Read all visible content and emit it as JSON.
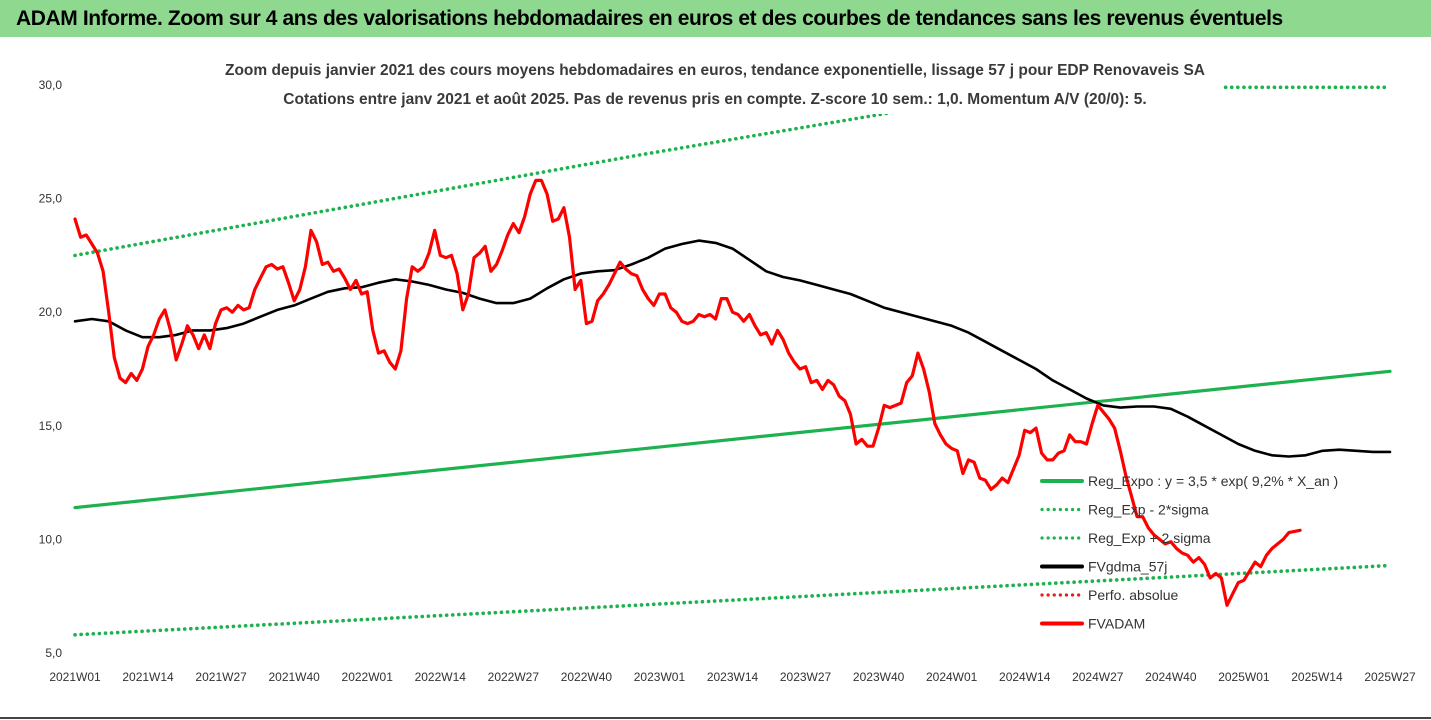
{
  "banner": {
    "text": "ADAM Informe. Zoom sur 4 ans des valorisations hebdomadaires en euros et des courbes de tendances sans les revenus éventuels"
  },
  "chart_data": {
    "type": "line",
    "title_lines": [
      "Zoom depuis janvier 2021 des cours moyens hebdomadaires en euros, tendance exponentielle, lissage 57 j pour EDP Renovaveis SA",
      "Cotations entre janv 2021 et août 2025.  Pas de revenus pris en compte. Z-score 10 sem.: 1,0. Momentum A/V (20/0): 5."
    ],
    "x_ticks": [
      "2021W01",
      "2021W14",
      "2021W27",
      "2021W40",
      "2022W01",
      "2022W14",
      "2022W27",
      "2022W40",
      "2023W01",
      "2023W14",
      "2023W27",
      "2023W40",
      "2024W01",
      "2024W14",
      "2024W27",
      "2024W40",
      "2025W01",
      "2025W14",
      "2025W27"
    ],
    "y_ticks": [
      "30,0",
      "25,0",
      "20,0",
      "15,0",
      "10,0",
      "5,0"
    ],
    "ylim": [
      5,
      30
    ],
    "x_range": [
      0,
      234
    ],
    "grid": false,
    "legend_position": "right",
    "series": [
      {
        "name": "Reg_Expo : y = 3,5 * exp( 9,2% *  X_an )",
        "style": "solid",
        "color": "#1eb14f",
        "points": [
          [
            0,
            11.4
          ],
          [
            234,
            17.4
          ]
        ]
      },
      {
        "name": "Reg_Exp - 2*sigma",
        "style": "dotted",
        "color": "#1eb14f",
        "points": [
          [
            0,
            5.8
          ],
          [
            234,
            8.85
          ]
        ]
      },
      {
        "name": "Reg_Exp + 2 sigma",
        "style": "dotted",
        "color": "#1eb14f",
        "points": [
          [
            0,
            22.5
          ],
          [
            100,
            26.9
          ],
          [
            172,
            29.9
          ],
          [
            234,
            29.9
          ]
        ]
      },
      {
        "name": "FVgdma_57j",
        "style": "solid",
        "color": "#000000",
        "points": [
          [
            0,
            19.6
          ],
          [
            3,
            19.7
          ],
          [
            6,
            19.6
          ],
          [
            9,
            19.2
          ],
          [
            12,
            18.9
          ],
          [
            15,
            18.9
          ],
          [
            18,
            19.0
          ],
          [
            21,
            19.2
          ],
          [
            24,
            19.2
          ],
          [
            27,
            19.3
          ],
          [
            30,
            19.5
          ],
          [
            33,
            19.8
          ],
          [
            36,
            20.1
          ],
          [
            39,
            20.3
          ],
          [
            42,
            20.6
          ],
          [
            45,
            20.9
          ],
          [
            48,
            21.05
          ],
          [
            51,
            21.1
          ],
          [
            54,
            21.3
          ],
          [
            57,
            21.45
          ],
          [
            60,
            21.35
          ],
          [
            63,
            21.2
          ],
          [
            66,
            21.0
          ],
          [
            69,
            20.85
          ],
          [
            72,
            20.6
          ],
          [
            75,
            20.4
          ],
          [
            78,
            20.4
          ],
          [
            81,
            20.6
          ],
          [
            84,
            21.05
          ],
          [
            87,
            21.45
          ],
          [
            90,
            21.7
          ],
          [
            93,
            21.8
          ],
          [
            96,
            21.85
          ],
          [
            99,
            22.1
          ],
          [
            102,
            22.4
          ],
          [
            105,
            22.8
          ],
          [
            108,
            23.0
          ],
          [
            111,
            23.15
          ],
          [
            114,
            23.05
          ],
          [
            117,
            22.8
          ],
          [
            120,
            22.3
          ],
          [
            123,
            21.8
          ],
          [
            126,
            21.55
          ],
          [
            129,
            21.4
          ],
          [
            132,
            21.2
          ],
          [
            135,
            21.0
          ],
          [
            138,
            20.8
          ],
          [
            141,
            20.5
          ],
          [
            144,
            20.2
          ],
          [
            147,
            20.0
          ],
          [
            150,
            19.8
          ],
          [
            153,
            19.6
          ],
          [
            156,
            19.4
          ],
          [
            159,
            19.1
          ],
          [
            162,
            18.7
          ],
          [
            165,
            18.3
          ],
          [
            168,
            17.9
          ],
          [
            171,
            17.5
          ],
          [
            174,
            17.0
          ],
          [
            177,
            16.6
          ],
          [
            180,
            16.2
          ],
          [
            183,
            15.9
          ],
          [
            186,
            15.8
          ],
          [
            189,
            15.85
          ],
          [
            192,
            15.85
          ],
          [
            195,
            15.75
          ],
          [
            198,
            15.4
          ],
          [
            201,
            15.0
          ],
          [
            204,
            14.6
          ],
          [
            207,
            14.2
          ],
          [
            210,
            13.9
          ],
          [
            213,
            13.7
          ],
          [
            216,
            13.65
          ],
          [
            219,
            13.7
          ],
          [
            222,
            13.9
          ],
          [
            225,
            13.95
          ],
          [
            228,
            13.9
          ],
          [
            231,
            13.85
          ],
          [
            234,
            13.85
          ]
        ]
      },
      {
        "name": "Perfo. absolue",
        "style": "dotted",
        "color": "#e02020",
        "points": []
      },
      {
        "name": "FVADAM",
        "style": "solid",
        "color": "#ff0000",
        "points": [
          [
            0,
            24.1
          ],
          [
            1,
            23.3
          ],
          [
            2,
            23.4
          ],
          [
            3,
            23.0
          ],
          [
            4,
            22.6
          ],
          [
            5,
            21.8
          ],
          [
            6,
            20.0
          ],
          [
            7,
            18.0
          ],
          [
            8,
            17.1
          ],
          [
            9,
            16.9
          ],
          [
            10,
            17.3
          ],
          [
            11,
            17.0
          ],
          [
            12,
            17.5
          ],
          [
            13,
            18.5
          ],
          [
            14,
            19.0
          ],
          [
            15,
            19.7
          ],
          [
            16,
            20.1
          ],
          [
            17,
            19.2
          ],
          [
            18,
            17.9
          ],
          [
            19,
            18.6
          ],
          [
            20,
            19.4
          ],
          [
            21,
            19.0
          ],
          [
            22,
            18.4
          ],
          [
            23,
            19.0
          ],
          [
            24,
            18.4
          ],
          [
            25,
            19.5
          ],
          [
            26,
            20.1
          ],
          [
            27,
            20.2
          ],
          [
            28,
            20.0
          ],
          [
            29,
            20.3
          ],
          [
            30,
            20.1
          ],
          [
            31,
            20.2
          ],
          [
            32,
            21.0
          ],
          [
            33,
            21.5
          ],
          [
            34,
            22.0
          ],
          [
            35,
            22.1
          ],
          [
            36,
            21.9
          ],
          [
            37,
            22.0
          ],
          [
            38,
            21.3
          ],
          [
            39,
            20.5
          ],
          [
            40,
            21.0
          ],
          [
            41,
            22.0
          ],
          [
            42,
            23.6
          ],
          [
            43,
            23.1
          ],
          [
            44,
            22.1
          ],
          [
            45,
            22.2
          ],
          [
            46,
            21.8
          ],
          [
            47,
            21.9
          ],
          [
            48,
            21.5
          ],
          [
            49,
            21.0
          ],
          [
            50,
            21.4
          ],
          [
            51,
            20.8
          ],
          [
            52,
            20.9
          ],
          [
            53,
            19.2
          ],
          [
            54,
            18.2
          ],
          [
            55,
            18.3
          ],
          [
            56,
            17.8
          ],
          [
            57,
            17.5
          ],
          [
            58,
            18.3
          ],
          [
            59,
            20.6
          ],
          [
            60,
            22.0
          ],
          [
            61,
            21.8
          ],
          [
            62,
            22.0
          ],
          [
            63,
            22.6
          ],
          [
            64,
            23.6
          ],
          [
            65,
            22.5
          ],
          [
            66,
            22.4
          ],
          [
            67,
            22.5
          ],
          [
            68,
            21.7
          ],
          [
            69,
            20.1
          ],
          [
            70,
            20.8
          ],
          [
            71,
            22.4
          ],
          [
            72,
            22.6
          ],
          [
            73,
            22.9
          ],
          [
            74,
            21.8
          ],
          [
            75,
            22.1
          ],
          [
            76,
            22.7
          ],
          [
            77,
            23.4
          ],
          [
            78,
            23.9
          ],
          [
            79,
            23.5
          ],
          [
            80,
            24.2
          ],
          [
            81,
            25.2
          ],
          [
            82,
            25.8
          ],
          [
            83,
            25.8
          ],
          [
            84,
            25.2
          ],
          [
            85,
            24.0
          ],
          [
            86,
            24.1
          ],
          [
            87,
            24.6
          ],
          [
            88,
            23.3
          ],
          [
            89,
            21.0
          ],
          [
            90,
            21.4
          ],
          [
            91,
            19.5
          ],
          [
            92,
            19.6
          ],
          [
            93,
            20.5
          ],
          [
            94,
            20.8
          ],
          [
            95,
            21.2
          ],
          [
            96,
            21.7
          ],
          [
            97,
            22.2
          ],
          [
            98,
            21.9
          ],
          [
            99,
            21.7
          ],
          [
            100,
            21.6
          ],
          [
            101,
            21.0
          ],
          [
            102,
            20.6
          ],
          [
            103,
            20.3
          ],
          [
            104,
            20.8
          ],
          [
            105,
            20.8
          ],
          [
            106,
            20.2
          ],
          [
            107,
            20.0
          ],
          [
            108,
            19.6
          ],
          [
            109,
            19.5
          ],
          [
            110,
            19.6
          ],
          [
            111,
            19.9
          ],
          [
            112,
            19.8
          ],
          [
            113,
            19.9
          ],
          [
            114,
            19.7
          ],
          [
            115,
            20.6
          ],
          [
            116,
            20.6
          ],
          [
            117,
            20.0
          ],
          [
            118,
            19.9
          ],
          [
            119,
            19.6
          ],
          [
            120,
            19.9
          ],
          [
            121,
            19.4
          ],
          [
            122,
            19.0
          ],
          [
            123,
            19.1
          ],
          [
            124,
            18.6
          ],
          [
            125,
            19.2
          ],
          [
            126,
            18.8
          ],
          [
            127,
            18.2
          ],
          [
            128,
            17.8
          ],
          [
            129,
            17.5
          ],
          [
            130,
            17.6
          ],
          [
            131,
            16.9
          ],
          [
            132,
            17.0
          ],
          [
            133,
            16.6
          ],
          [
            134,
            17.0
          ],
          [
            135,
            16.8
          ],
          [
            136,
            16.3
          ],
          [
            137,
            16.1
          ],
          [
            138,
            15.5
          ],
          [
            139,
            14.2
          ],
          [
            140,
            14.4
          ],
          [
            141,
            14.1
          ],
          [
            142,
            14.1
          ],
          [
            143,
            14.9
          ],
          [
            144,
            15.9
          ],
          [
            145,
            15.8
          ],
          [
            146,
            15.9
          ],
          [
            147,
            16.0
          ],
          [
            148,
            16.9
          ],
          [
            149,
            17.2
          ],
          [
            150,
            18.2
          ],
          [
            151,
            17.5
          ],
          [
            152,
            16.5
          ],
          [
            153,
            15.1
          ],
          [
            154,
            14.6
          ],
          [
            155,
            14.2
          ],
          [
            156,
            14.0
          ],
          [
            157,
            13.9
          ],
          [
            158,
            12.9
          ],
          [
            159,
            13.5
          ],
          [
            160,
            13.4
          ],
          [
            161,
            12.7
          ],
          [
            162,
            12.6
          ],
          [
            163,
            12.2
          ],
          [
            164,
            12.4
          ],
          [
            165,
            12.7
          ],
          [
            166,
            12.5
          ],
          [
            167,
            13.1
          ],
          [
            168,
            13.7
          ],
          [
            169,
            14.8
          ],
          [
            170,
            14.7
          ],
          [
            171,
            14.9
          ],
          [
            172,
            13.8
          ],
          [
            173,
            13.5
          ],
          [
            174,
            13.5
          ],
          [
            175,
            13.8
          ],
          [
            176,
            13.9
          ],
          [
            177,
            14.6
          ],
          [
            178,
            14.3
          ],
          [
            179,
            14.3
          ],
          [
            180,
            14.2
          ],
          [
            181,
            15.1
          ],
          [
            182,
            15.9
          ],
          [
            183,
            15.6
          ],
          [
            184,
            15.3
          ],
          [
            185,
            14.9
          ],
          [
            186,
            13.9
          ],
          [
            187,
            12.8
          ],
          [
            188,
            11.9
          ],
          [
            189,
            11.0
          ],
          [
            190,
            11.0
          ],
          [
            191,
            10.5
          ],
          [
            192,
            10.2
          ],
          [
            193,
            10.0
          ],
          [
            194,
            9.8
          ],
          [
            195,
            9.9
          ],
          [
            196,
            9.6
          ],
          [
            197,
            9.4
          ],
          [
            198,
            9.3
          ],
          [
            199,
            9.0
          ],
          [
            200,
            9.2
          ],
          [
            201,
            8.9
          ],
          [
            202,
            8.3
          ],
          [
            203,
            8.5
          ],
          [
            204,
            8.3
          ],
          [
            205,
            7.1
          ],
          [
            206,
            7.6
          ],
          [
            207,
            8.1
          ],
          [
            208,
            8.2
          ],
          [
            209,
            8.6
          ],
          [
            210,
            9.0
          ],
          [
            211,
            8.8
          ],
          [
            212,
            9.3
          ],
          [
            213,
            9.6
          ],
          [
            214,
            9.8
          ],
          [
            215,
            10.0
          ],
          [
            216,
            10.3
          ],
          [
            217,
            10.35
          ],
          [
            218,
            10.4
          ]
        ]
      }
    ]
  }
}
